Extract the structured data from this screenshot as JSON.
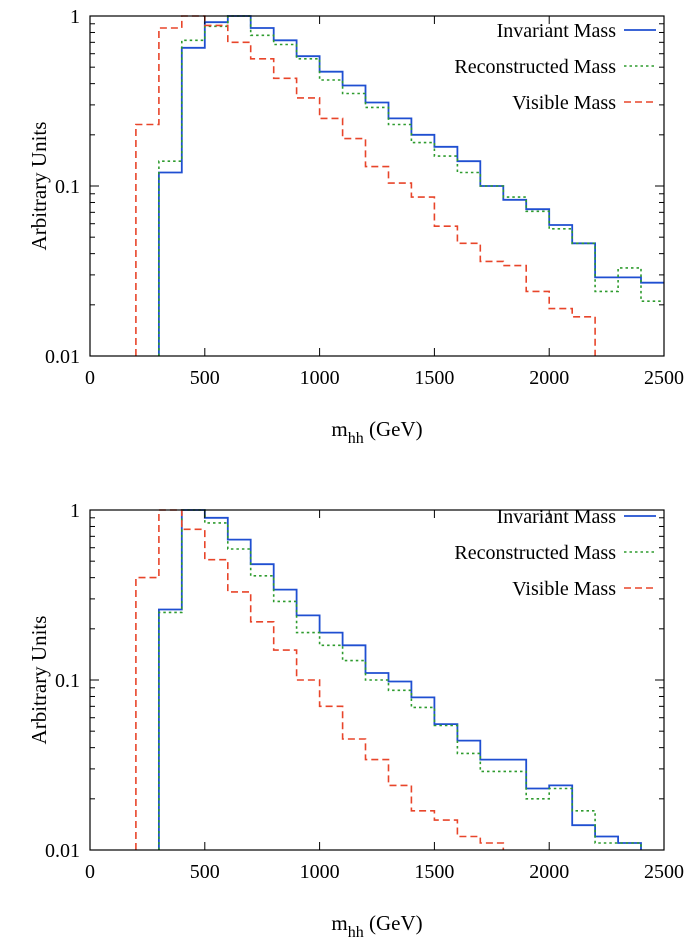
{
  "chart_data": [
    {
      "type": "line",
      "step": true,
      "title": "",
      "xlabel": "m",
      "xlabel_sub": "hh",
      "xlabel_unit": " (GeV)",
      "ylabel": "Arbitrary Units",
      "xlim": [
        0,
        2500
      ],
      "ylim": [
        0.01,
        1
      ],
      "yscale": "log",
      "grid": false,
      "legend_position": "top-right",
      "xticks": [
        0,
        500,
        1000,
        1500,
        2000,
        2500
      ],
      "xtick_labels": [
        "0",
        "500",
        "1000",
        "1500",
        "2000",
        "2500"
      ],
      "yticks": [
        0.01,
        0.1,
        1
      ],
      "ytick_labels": [
        "0.01",
        "0.1",
        "1"
      ],
      "series": [
        {
          "name": "Invariant Mass",
          "color": "#1f4fd1",
          "dash": "solid",
          "x": [
            300,
            400,
            500,
            600,
            700,
            800,
            900,
            1000,
            1100,
            1200,
            1300,
            1400,
            1500,
            1600,
            1700,
            1800,
            1900,
            2000,
            2100,
            2200,
            2300,
            2400
          ],
          "values": [
            0.12,
            0.65,
            0.92,
            1.0,
            0.85,
            0.72,
            0.58,
            0.47,
            0.39,
            0.31,
            0.25,
            0.2,
            0.17,
            0.14,
            0.1,
            0.083,
            0.073,
            0.059,
            0.046,
            0.029,
            0.029,
            0.027
          ]
        },
        {
          "name": "Reconstructed Mass",
          "color": "#2e9b2e",
          "dash": "dotted",
          "x": [
            300,
            400,
            500,
            600,
            700,
            800,
            900,
            1000,
            1100,
            1200,
            1300,
            1400,
            1500,
            1600,
            1700,
            1800,
            1900,
            2000,
            2100,
            2200,
            2300,
            2400
          ],
          "values": [
            0.14,
            0.72,
            0.87,
            1.0,
            0.77,
            0.68,
            0.56,
            0.42,
            0.35,
            0.29,
            0.23,
            0.18,
            0.15,
            0.12,
            0.1,
            0.086,
            0.071,
            0.056,
            0.046,
            0.024,
            0.033,
            0.021
          ]
        },
        {
          "name": "Visible Mass",
          "color": "#e8452a",
          "dash": "dashed",
          "x": [
            200,
            300,
            400,
            500,
            600,
            700,
            800,
            900,
            1000,
            1100,
            1200,
            1300,
            1400,
            1500,
            1600,
            1700,
            1800,
            1900,
            2000,
            2100
          ],
          "values": [
            0.23,
            0.85,
            1.0,
            0.88,
            0.7,
            0.56,
            0.43,
            0.33,
            0.25,
            0.19,
            0.13,
            0.104,
            0.086,
            0.058,
            0.046,
            0.036,
            0.034,
            0.024,
            0.019,
            0.017
          ]
        }
      ]
    },
    {
      "type": "line",
      "step": true,
      "title": "",
      "xlabel": "m",
      "xlabel_sub": "hh",
      "xlabel_unit": " (GeV)",
      "ylabel": "Arbitrary Units",
      "xlim": [
        0,
        2500
      ],
      "ylim": [
        0.01,
        1
      ],
      "yscale": "log",
      "grid": false,
      "legend_position": "top-right",
      "xticks": [
        0,
        500,
        1000,
        1500,
        2000,
        2500
      ],
      "xtick_labels": [
        "0",
        "500",
        "1000",
        "1500",
        "2000",
        "2500"
      ],
      "yticks": [
        0.01,
        0.1,
        1
      ],
      "ytick_labels": [
        "0.01",
        "0.1",
        "1"
      ],
      "series": [
        {
          "name": "Invariant Mass",
          "color": "#1f4fd1",
          "dash": "solid",
          "x": [
            300,
            400,
            500,
            600,
            700,
            800,
            900,
            1000,
            1100,
            1200,
            1300,
            1400,
            1500,
            1600,
            1700,
            1800,
            1900,
            2000,
            2100,
            2200,
            2300
          ],
          "values": [
            0.26,
            1.0,
            0.9,
            0.67,
            0.48,
            0.34,
            0.24,
            0.19,
            0.16,
            0.11,
            0.098,
            0.079,
            0.055,
            0.044,
            0.034,
            0.034,
            0.023,
            0.024,
            0.014,
            0.012,
            0.011
          ]
        },
        {
          "name": "Reconstructed Mass",
          "color": "#2e9b2e",
          "dash": "dotted",
          "x": [
            300,
            400,
            500,
            600,
            700,
            800,
            900,
            1000,
            1100,
            1200,
            1300,
            1400,
            1500,
            1600,
            1700,
            1800,
            1900,
            2000,
            2100,
            2200,
            2300
          ],
          "values": [
            0.25,
            1.0,
            0.84,
            0.59,
            0.41,
            0.29,
            0.19,
            0.16,
            0.13,
            0.1,
            0.087,
            0.069,
            0.054,
            0.037,
            0.029,
            0.029,
            0.02,
            0.023,
            0.017,
            0.011,
            0.011
          ]
        },
        {
          "name": "Visible Mass",
          "color": "#e8452a",
          "dash": "dashed",
          "x": [
            200,
            300,
            400,
            500,
            600,
            700,
            800,
            900,
            1000,
            1100,
            1200,
            1300,
            1400,
            1500,
            1600,
            1700
          ],
          "values": [
            0.4,
            1.0,
            0.77,
            0.51,
            0.33,
            0.22,
            0.15,
            0.1,
            0.07,
            0.045,
            0.034,
            0.024,
            0.017,
            0.015,
            0.012,
            0.011
          ]
        }
      ]
    }
  ]
}
